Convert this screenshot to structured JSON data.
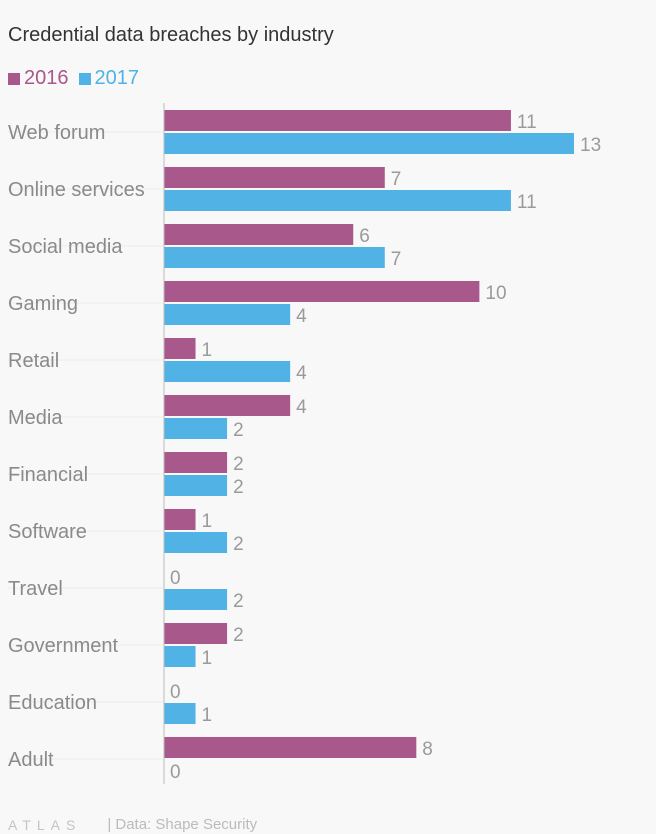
{
  "chart_data": {
    "type": "bar",
    "orientation": "horizontal",
    "title": "Credential data breaches by industry",
    "categories": [
      "Web forum",
      "Online services",
      "Social media",
      "Gaming",
      "Retail",
      "Media",
      "Financial",
      "Software",
      "Travel",
      "Government",
      "Education",
      "Adult"
    ],
    "series": [
      {
        "name": "2016",
        "color": "#a8588a",
        "values": [
          11,
          7,
          6,
          10,
          1,
          4,
          2,
          1,
          0,
          2,
          0,
          8
        ]
      },
      {
        "name": "2017",
        "color": "#51b2e5",
        "values": [
          13,
          11,
          7,
          4,
          4,
          2,
          2,
          2,
          2,
          1,
          1,
          0
        ]
      }
    ],
    "xlim": [
      0,
      13
    ],
    "xlabel": "",
    "ylabel": "",
    "grid": false,
    "legend": "top-left"
  },
  "footer": {
    "logo": "ATLAS",
    "source": "| Data: Shape Security"
  }
}
